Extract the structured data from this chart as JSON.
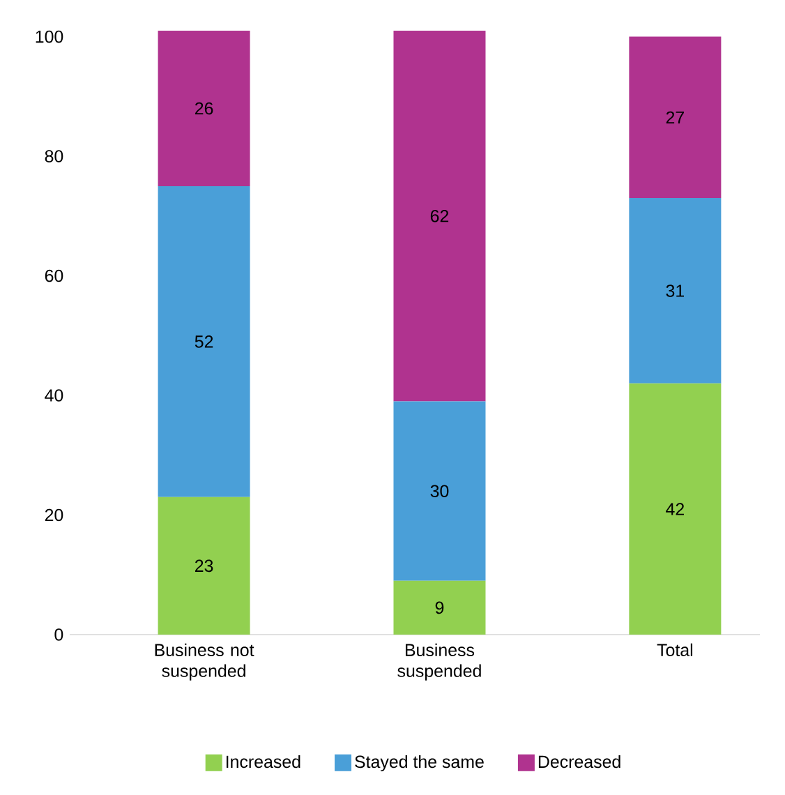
{
  "chart_data": {
    "type": "bar",
    "stacked": true,
    "categories": [
      "Business not suspended",
      "Business suspended",
      "Total"
    ],
    "series": [
      {
        "name": "Increased",
        "color": "#92d050",
        "values": [
          23,
          9,
          42
        ]
      },
      {
        "name": "Stayed the same",
        "color": "#4a9fd8",
        "values": [
          52,
          30,
          31
        ]
      },
      {
        "name": "Decreased",
        "color": "#b0338f",
        "values": [
          26,
          62,
          27
        ]
      }
    ],
    "ylim": [
      0,
      101
    ],
    "yticks": [
      0,
      20,
      40,
      60,
      80,
      100
    ],
    "data_labels": true,
    "legend": "bottom",
    "grid": false
  }
}
